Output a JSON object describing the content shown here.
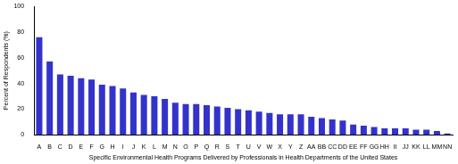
{
  "chart_data": {
    "type": "bar",
    "xlabel": "Specific Environmental Health Programs Delivered by Professionals in Health Departments of the United States",
    "ylabel": "Percent of Respondents (%)",
    "categories": [
      "A",
      "B",
      "C",
      "D",
      "E",
      "F",
      "G",
      "H",
      "I",
      "J",
      "K",
      "L",
      "M",
      "N",
      "O",
      "P",
      "Q",
      "R",
      "S",
      "T",
      "U",
      "V",
      "W",
      "X",
      "Y",
      "Z",
      "AA",
      "BB",
      "CC",
      "DD",
      "EE",
      "FF",
      "GG",
      "HH",
      "II",
      "JJ",
      "KK",
      "LL",
      "MM",
      "NN"
    ],
    "values": [
      76,
      57,
      47,
      46,
      44,
      43,
      39,
      38,
      36,
      33,
      31,
      30,
      28,
      25,
      24,
      24,
      23,
      22,
      21,
      20,
      19,
      18,
      17,
      16,
      16,
      16,
      14,
      13,
      12,
      11,
      8,
      7,
      6,
      5,
      5,
      5,
      4,
      4,
      3,
      1
    ],
    "color": "#3333cc",
    "ylim": [
      0,
      100
    ],
    "yticks": [
      0,
      20,
      40,
      60,
      80,
      100
    ],
    "grid": false
  }
}
